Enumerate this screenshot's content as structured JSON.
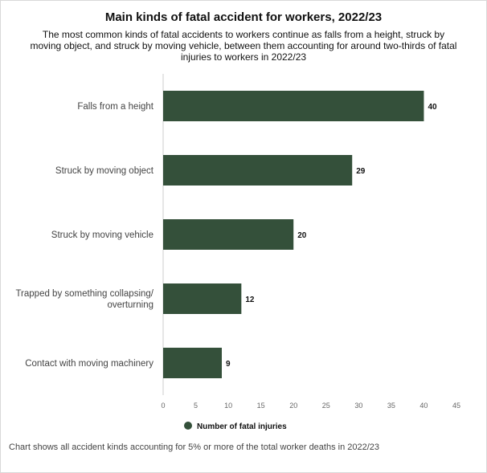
{
  "title": "Main kinds of fatal accident for workers, 2022/23",
  "subtitle": "The most common kinds of fatal accidents to workers continue as falls from a height, struck by moving object, and struck by moving vehicle, between them accounting for around two-thirds of fatal injuries to workers in 2022/23",
  "footnote": "Chart shows all accident kinds accounting for 5% or more of the total worker deaths in 2022/23",
  "colors": {
    "bar": "#34503a",
    "axis": "#cccccc"
  },
  "chart_data": {
    "type": "bar",
    "orientation": "horizontal",
    "categories": [
      [
        "Falls from a height"
      ],
      [
        "Struck by moving object"
      ],
      [
        "Struck by moving vehicle"
      ],
      [
        "Trapped by something collapsing/",
        "overturning"
      ],
      [
        "Contact with moving machinery"
      ]
    ],
    "series": [
      {
        "name": "Number of fatal injuries",
        "values": [
          40,
          29,
          20,
          12,
          9
        ]
      }
    ],
    "xlim": [
      0,
      45
    ],
    "xticks": [
      0,
      5,
      10,
      15,
      20,
      25,
      30,
      35,
      40,
      45
    ],
    "grid": false,
    "legend": "bottom"
  }
}
